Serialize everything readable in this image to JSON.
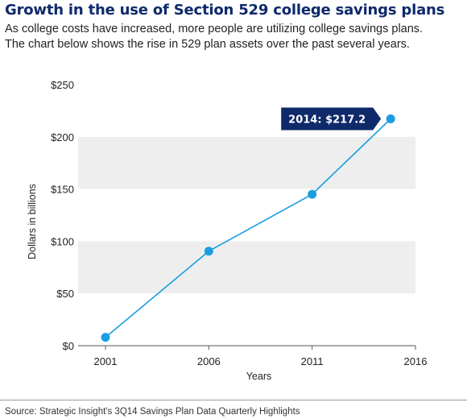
{
  "header": {
    "title": "Growth in the use of Section 529 college savings plans",
    "subtitle_line1": "As college costs have increased, more people are utilizing college savings plans.",
    "subtitle_line2": "The chart below shows the rise in 529 plan assets over the past several years."
  },
  "chart_data": {
    "type": "line",
    "x": [
      2001,
      2006,
      2011,
      2014.8
    ],
    "series": [
      {
        "values": [
          8,
          90.5,
          145,
          217.2
        ],
        "color": "#1a9ee0"
      }
    ],
    "xlabel": "Years",
    "ylabel": "Dollars in billions",
    "xlim": [
      2001,
      2016
    ],
    "ylim": [
      0,
      250
    ],
    "x_ticks": [
      2001,
      2006,
      2011,
      2016
    ],
    "x_tick_labels": [
      "2001",
      "2006",
      "2011",
      "2016"
    ],
    "y_ticks": [
      0,
      50,
      100,
      150,
      200,
      250
    ],
    "y_tick_labels": [
      "$0",
      "$50",
      "$100",
      "$150",
      "$200",
      "$250"
    ],
    "grid": "alternating horizontal bands",
    "annotation": {
      "text": "2014: $217.2",
      "point_index": 3,
      "placement": "left"
    },
    "colors": {
      "line": "#1a9ee0",
      "band": "#eeeeee",
      "callout": "#0f2a6b",
      "axis": "#555555"
    }
  },
  "footer": {
    "source": "Source: Strategic Insight's 3Q14 Savings Plan Data Quarterly Highlights"
  }
}
